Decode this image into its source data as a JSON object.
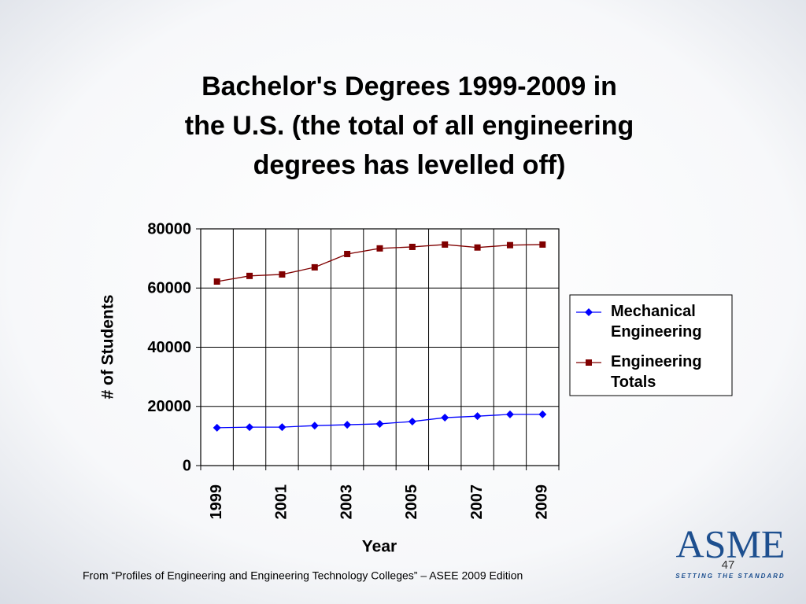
{
  "chart_data": {
    "type": "line",
    "title": [
      "Bachelor's Degrees 1999-2009 in",
      "the U.S. (the total of all engineering",
      "degrees has levelled off)"
    ],
    "x_label": "Year",
    "y_label": "# of Students",
    "categories": [
      "1999",
      null,
      "2001",
      null,
      "2003",
      null,
      "2005",
      null,
      "2007",
      null,
      "2009"
    ],
    "series": [
      {
        "name": "Mechanical Engineering",
        "color": "#0000ff",
        "marker": "diamond",
        "values": [
          12800,
          13000,
          13000,
          13500,
          13800,
          14100,
          14900,
          16200,
          16700,
          17300,
          17300
        ]
      },
      {
        "name": "Engineering Totals",
        "color": "#800000",
        "marker": "square",
        "values": [
          62200,
          64100,
          64600,
          67000,
          71500,
          73400,
          73900,
          74700,
          73700,
          74500,
          74700
        ]
      }
    ],
    "ylim": [
      0,
      80000
    ],
    "yticks": [
      0,
      20000,
      40000,
      60000,
      80000
    ],
    "grid": true,
    "legend": "right"
  },
  "footer": "From “Profiles of Engineering and Engineering Technology Colleges” – ASEE 2009 Edition",
  "page_number": "47",
  "logo": {
    "name": "ASME",
    "tagline": "SETTING THE STANDARD"
  }
}
